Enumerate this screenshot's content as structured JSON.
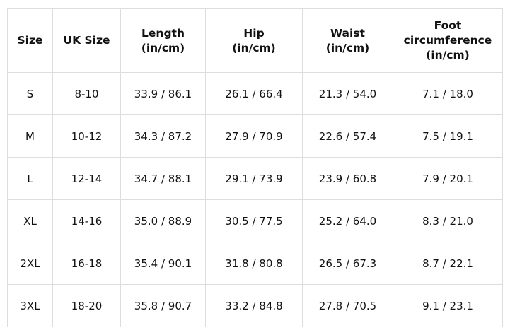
{
  "table": {
    "header": [
      [
        "Size"
      ],
      [
        "UK Size"
      ],
      [
        "Length",
        "(in/cm)"
      ],
      [
        "Hip",
        "(in/cm)"
      ],
      [
        "Waist",
        "(in/cm)"
      ],
      [
        "Foot",
        "circumference",
        "(in/cm)"
      ]
    ],
    "rows": [
      [
        "S",
        "8-10",
        "33.9 / 86.1",
        "26.1 / 66.4",
        "21.3 / 54.0",
        "7.1 / 18.0"
      ],
      [
        "M",
        "10-12",
        "34.3 / 87.2",
        "27.9 / 70.9",
        "22.6 / 57.4",
        "7.5 / 19.1"
      ],
      [
        "L",
        "12-14",
        "34.7 / 88.1",
        "29.1 / 73.9",
        "23.9 / 60.8",
        "7.9 / 20.1"
      ],
      [
        "XL",
        "14-16",
        "35.0 / 88.9",
        "30.5 / 77.5",
        "25.2 / 64.0",
        "8.3 / 21.0"
      ],
      [
        "2XL",
        "16-18",
        "35.4 / 90.1",
        "31.8 / 80.8",
        "26.5 / 67.3",
        "8.7 / 22.1"
      ],
      [
        "3XL",
        "18-20",
        "35.8 / 90.7",
        "33.2 / 84.8",
        "27.8 / 70.5",
        "9.1 / 23.1"
      ]
    ]
  }
}
